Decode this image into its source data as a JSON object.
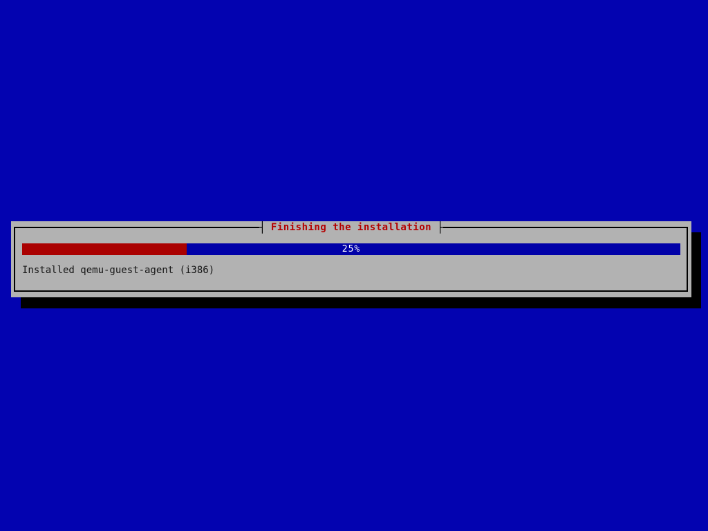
{
  "screen": {
    "background_color": "#0303b0"
  },
  "dialog": {
    "title": "Finishing the installation",
    "title_color": "#b40000",
    "title_left_connector": "┤",
    "title_right_connector": "├",
    "background_color": "#b2b2b2",
    "border_color": "#000000",
    "shadow_color": "#000000"
  },
  "progress": {
    "percent": 25,
    "label": "25%",
    "fill_color": "#aa0000",
    "track_color": "#0000a8",
    "label_color": "#ffffff"
  },
  "status": {
    "text": "Installed qemu-guest-agent (i386)",
    "color": "#141414"
  }
}
